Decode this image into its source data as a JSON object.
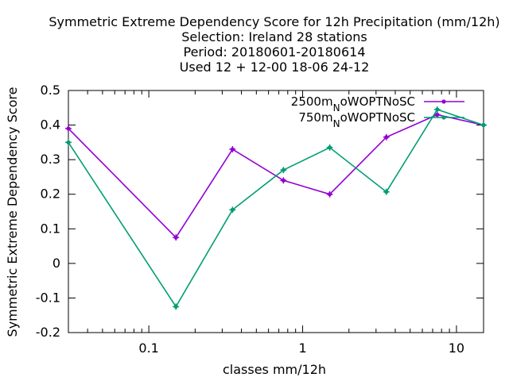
{
  "title_lines": [
    "Symmetric Extreme Dependency Score  for 12h Precipitation (mm/12h)",
    "Selection: Ireland     28 stations",
    "Period: 20180601-20180614",
    "Used  12 + 12-00 18-06 24-12"
  ],
  "chart_data": {
    "type": "line",
    "xlabel": "classes mm/12h",
    "ylabel": "Symmetric Extreme Dependency Score",
    "xscale": "log",
    "xlim": [
      0.03,
      15
    ],
    "ylim": [
      -0.2,
      0.5
    ],
    "xticks": [
      {
        "value": 0.1,
        "label": "0.1"
      },
      {
        "value": 1,
        "label": "1"
      },
      {
        "value": 10,
        "label": "10"
      }
    ],
    "yticks": [
      {
        "value": 0.5,
        "label": "0.5"
      },
      {
        "value": 0.4,
        "label": "0.4"
      },
      {
        "value": 0.3,
        "label": "0.3"
      },
      {
        "value": 0.2,
        "label": "0.2"
      },
      {
        "value": 0.1,
        "label": "0.1"
      },
      {
        "value": 0,
        "label": "0"
      },
      {
        "value": -0.1,
        "label": "-0.1"
      },
      {
        "value": -0.2,
        "label": "-0.2"
      }
    ],
    "grid": false,
    "legend_position": "top-right",
    "series": [
      {
        "name": "2500m_NoWOPTNoSC",
        "label_main": "2500m",
        "label_sub": "N",
        "label_rest": "oWOPTNoSC",
        "color": "#9400d3",
        "x": [
          0.03,
          0.15,
          0.35,
          0.75,
          1.5,
          3.5,
          7.5,
          15
        ],
        "y": [
          0.39,
          0.075,
          0.33,
          0.24,
          0.2,
          0.365,
          0.43,
          0.4
        ]
      },
      {
        "name": "750m_NoWOPTNoSC",
        "label_main": "750m",
        "label_sub": "N",
        "label_rest": "oWOPTNoSC",
        "color": "#009e73",
        "x": [
          0.03,
          0.15,
          0.35,
          0.75,
          1.5,
          3.5,
          7.5,
          15
        ],
        "y": [
          0.35,
          -0.125,
          0.155,
          0.27,
          0.335,
          0.207,
          0.445,
          0.4
        ]
      }
    ]
  }
}
